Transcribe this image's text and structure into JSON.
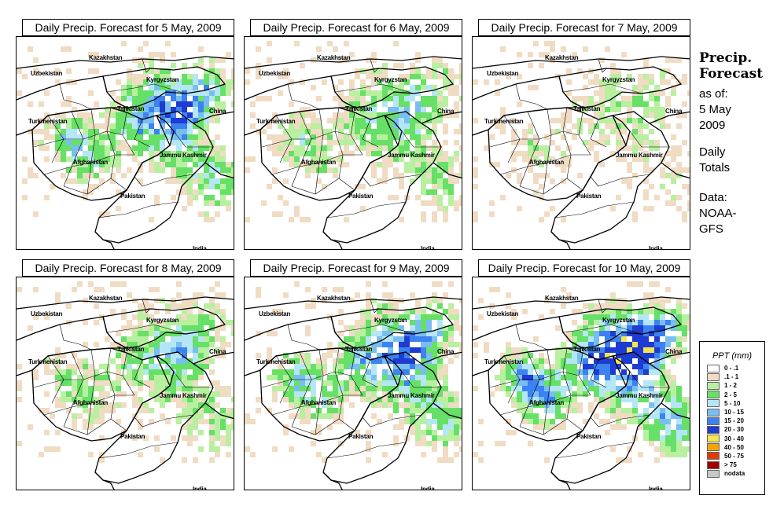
{
  "panels": [
    {
      "title": "Daily Precip. Forecast for  5 May, 2009"
    },
    {
      "title": "Daily Precip. Forecast for  6 May, 2009"
    },
    {
      "title": "Daily Precip. Forecast for  7 May, 2009"
    },
    {
      "title": "Daily Precip. Forecast for  8 May, 2009"
    },
    {
      "title": "Daily Precip. Forecast for  9 May, 2009"
    },
    {
      "title": "Daily Precip. Forecast for  10 May, 2009"
    }
  ],
  "map_labels": {
    "kazakhstan": "Kazakhstan",
    "uzbekistan": "Uzbekistan",
    "kyrgyzstan": "Kyrgyzstan",
    "tajikistan": "Tajikistan",
    "china": "China",
    "turkmenistan": "Turkmenistan",
    "jammu_kashmir": "Jammu Kashmir",
    "afghanistan": "Afghanistan",
    "pakistan": "Pakistan",
    "india": "India"
  },
  "sidebar": {
    "heading_1": "Precip.",
    "heading_2": "Forecast",
    "as_of_1": "as of:",
    "as_of_2": "5 May",
    "as_of_3": "2009",
    "totals_1": "Daily",
    "totals_2": "Totals",
    "data_1": "Data:",
    "data_2": "NOAA-",
    "data_3": "GFS"
  },
  "legend": {
    "title": "PPT (mm)",
    "items": [
      {
        "label": "0 - .1",
        "color": "#ffffff"
      },
      {
        "label": ".1 - 1",
        "color": "#f0dcc3"
      },
      {
        "label": "1 - 2",
        "color": "#b8f0a0"
      },
      {
        "label": "2 - 5",
        "color": "#66e066"
      },
      {
        "label": "5 - 10",
        "color": "#b4e6f5"
      },
      {
        "label": "10 - 15",
        "color": "#78bef0"
      },
      {
        "label": "15 - 20",
        "color": "#3c82f0"
      },
      {
        "label": "20 - 30",
        "color": "#1e3cd2"
      },
      {
        "label": "30 - 40",
        "color": "#f5e650"
      },
      {
        "label": "40 - 50",
        "color": "#f5a500"
      },
      {
        "label": "50 - 75",
        "color": "#e13c00"
      },
      {
        "label": "> 75",
        "color": "#a00000"
      },
      {
        "label": "nodata",
        "color": "#c8c8c8"
      }
    ]
  }
}
